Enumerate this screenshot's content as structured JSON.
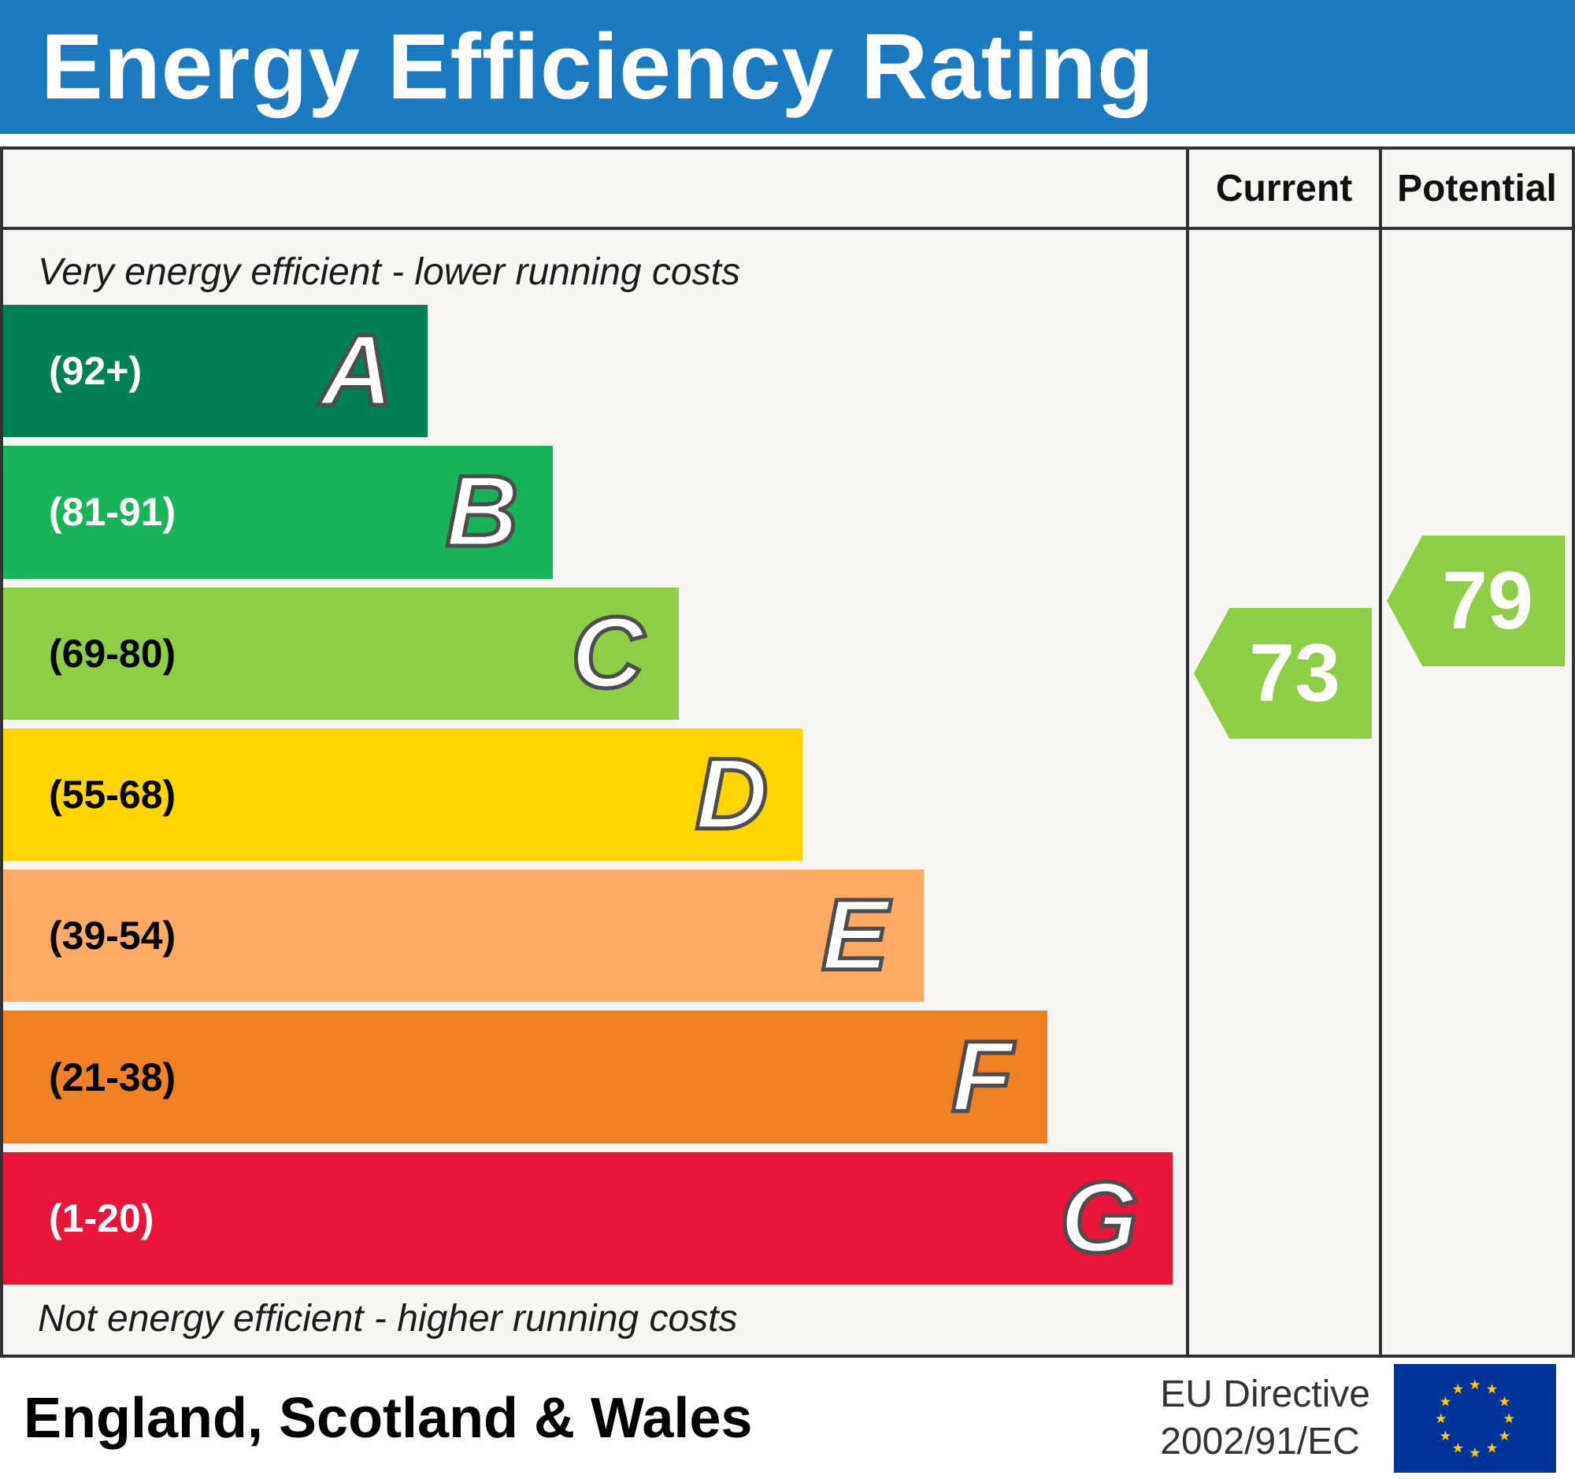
{
  "colors": {
    "header_blue": "#1c7ac0",
    "chart_border": "#333333",
    "chart_background": "#f7f6f2",
    "eu_flag_blue": "#003399",
    "eu_star_yellow": "#ffcc00"
  },
  "icons": {
    "eu_star": "★"
  },
  "page": {
    "title": "Energy Efficiency Rating"
  },
  "table_header": {
    "current": "Current",
    "potential": "Potential"
  },
  "captions": {
    "top": "Very energy efficient - lower running costs",
    "bottom": "Not energy efficient - higher running costs"
  },
  "footer": {
    "region": "England, Scotland & Wales",
    "directive_line1": "EU Directive",
    "directive_line2": "2002/91/EC"
  },
  "chart_data": {
    "type": "bar",
    "title": "Energy Efficiency Rating",
    "top_caption": "Very energy efficient - lower running costs",
    "bottom_caption": "Not energy efficient - higher running costs",
    "columns": [
      "Current",
      "Potential"
    ],
    "bands": [
      {
        "letter": "A",
        "range": "(92+)",
        "min": 92,
        "max": 100,
        "color": "#008054",
        "range_label_color": "#ffffff",
        "width_pct": 35.9
      },
      {
        "letter": "B",
        "range": "(81-91)",
        "min": 81,
        "max": 91,
        "color": "#19b459",
        "range_label_color": "#ffffff",
        "width_pct": 46.5
      },
      {
        "letter": "C",
        "range": "(69-80)",
        "min": 69,
        "max": 80,
        "color": "#8dce46",
        "range_label_color": "#000000",
        "width_pct": 57.1
      },
      {
        "letter": "D",
        "range": "(55-68)",
        "min": 55,
        "max": 68,
        "color": "#ffd500",
        "range_label_color": "#000000",
        "width_pct": 67.6
      },
      {
        "letter": "E",
        "range": "(39-54)",
        "min": 39,
        "max": 54,
        "color": "#fcaa65",
        "range_label_color": "#000000",
        "width_pct": 77.8
      },
      {
        "letter": "F",
        "range": "(21-38)",
        "min": 21,
        "max": 38,
        "color": "#ef8023",
        "range_label_color": "#000000",
        "width_pct": 88.3
      },
      {
        "letter": "G",
        "range": "(1-20)",
        "min": 1,
        "max": 20,
        "color": "#e9153b",
        "range_label_color": "#ffffff",
        "width_pct": 98.9
      }
    ],
    "current": {
      "value": 73,
      "band": "C",
      "color": "#8dce46"
    },
    "potential": {
      "value": 79,
      "band": "C",
      "color": "#8dce46"
    }
  }
}
